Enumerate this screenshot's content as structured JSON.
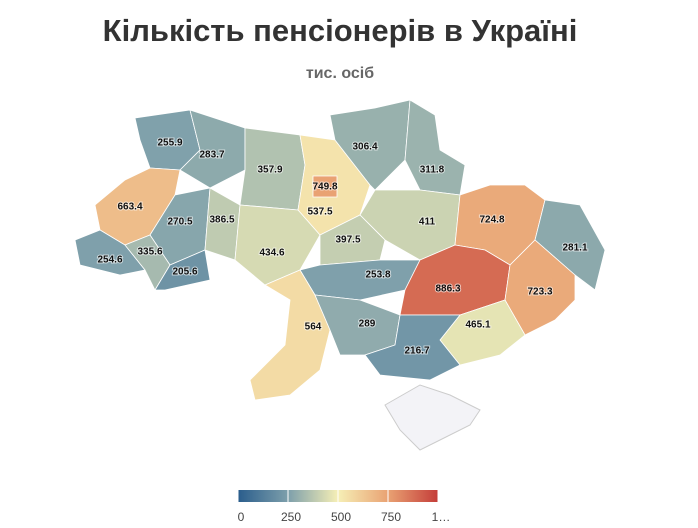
{
  "chart_data": {
    "type": "choropleth",
    "title": "Кількість пенсіонерів в Україні",
    "subtitle": "тис. осіб",
    "values": [
      255.9,
      283.7,
      357.9,
      537.5,
      749.8,
      306.4,
      311.8,
      663.4,
      270.5,
      386.5,
      411,
      724.8,
      281.1,
      254.6,
      335.6,
      205.6,
      434.6,
      397.5,
      253.8,
      886.3,
      723.3,
      564,
      289,
      465.1,
      216.7
    ],
    "zlim": [
      0,
      1000
    ],
    "colorscale": [
      "#2a5d8c",
      "#7d9fab",
      "#f6efb6",
      "#e9a273",
      "#c43d39"
    ],
    "zticks": [
      0,
      250,
      500,
      750,
      {
        "value": 1000,
        "label": "1…"
      }
    ]
  }
}
